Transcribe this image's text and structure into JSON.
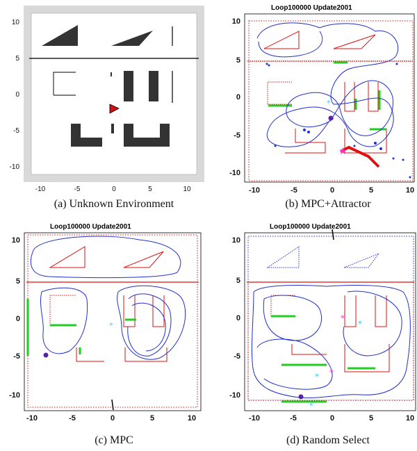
{
  "panels": [
    {
      "caption": "(a) Unknown Environment"
    },
    {
      "caption": "(b) MPC+Attractor",
      "title": "Loop100000 Update2001"
    },
    {
      "caption": "(c) MPC",
      "title": "Loop100000 Update2001"
    },
    {
      "caption": "(d) Random Select",
      "title": "Loop100000 Update2001"
    }
  ],
  "axes_a": {
    "x_ticks": [
      "-10",
      "-5",
      "0",
      "5",
      "10"
    ],
    "y_ticks": [
      "10",
      "5",
      "0",
      "-5",
      "-10"
    ]
  },
  "axes_b": {
    "x_ticks": [
      "-10",
      "-5",
      "0",
      "5",
      "10"
    ],
    "y_ticks": [
      "10",
      "5",
      "0",
      "-5",
      "-10"
    ]
  },
  "colors": {
    "path": "#1f2fd0",
    "frontier": "#e01010",
    "wall": "#333333",
    "explored": "#22cc22",
    "robot": "#cc1111",
    "target": "#ff33cc",
    "goal": "#33ccff"
  }
}
